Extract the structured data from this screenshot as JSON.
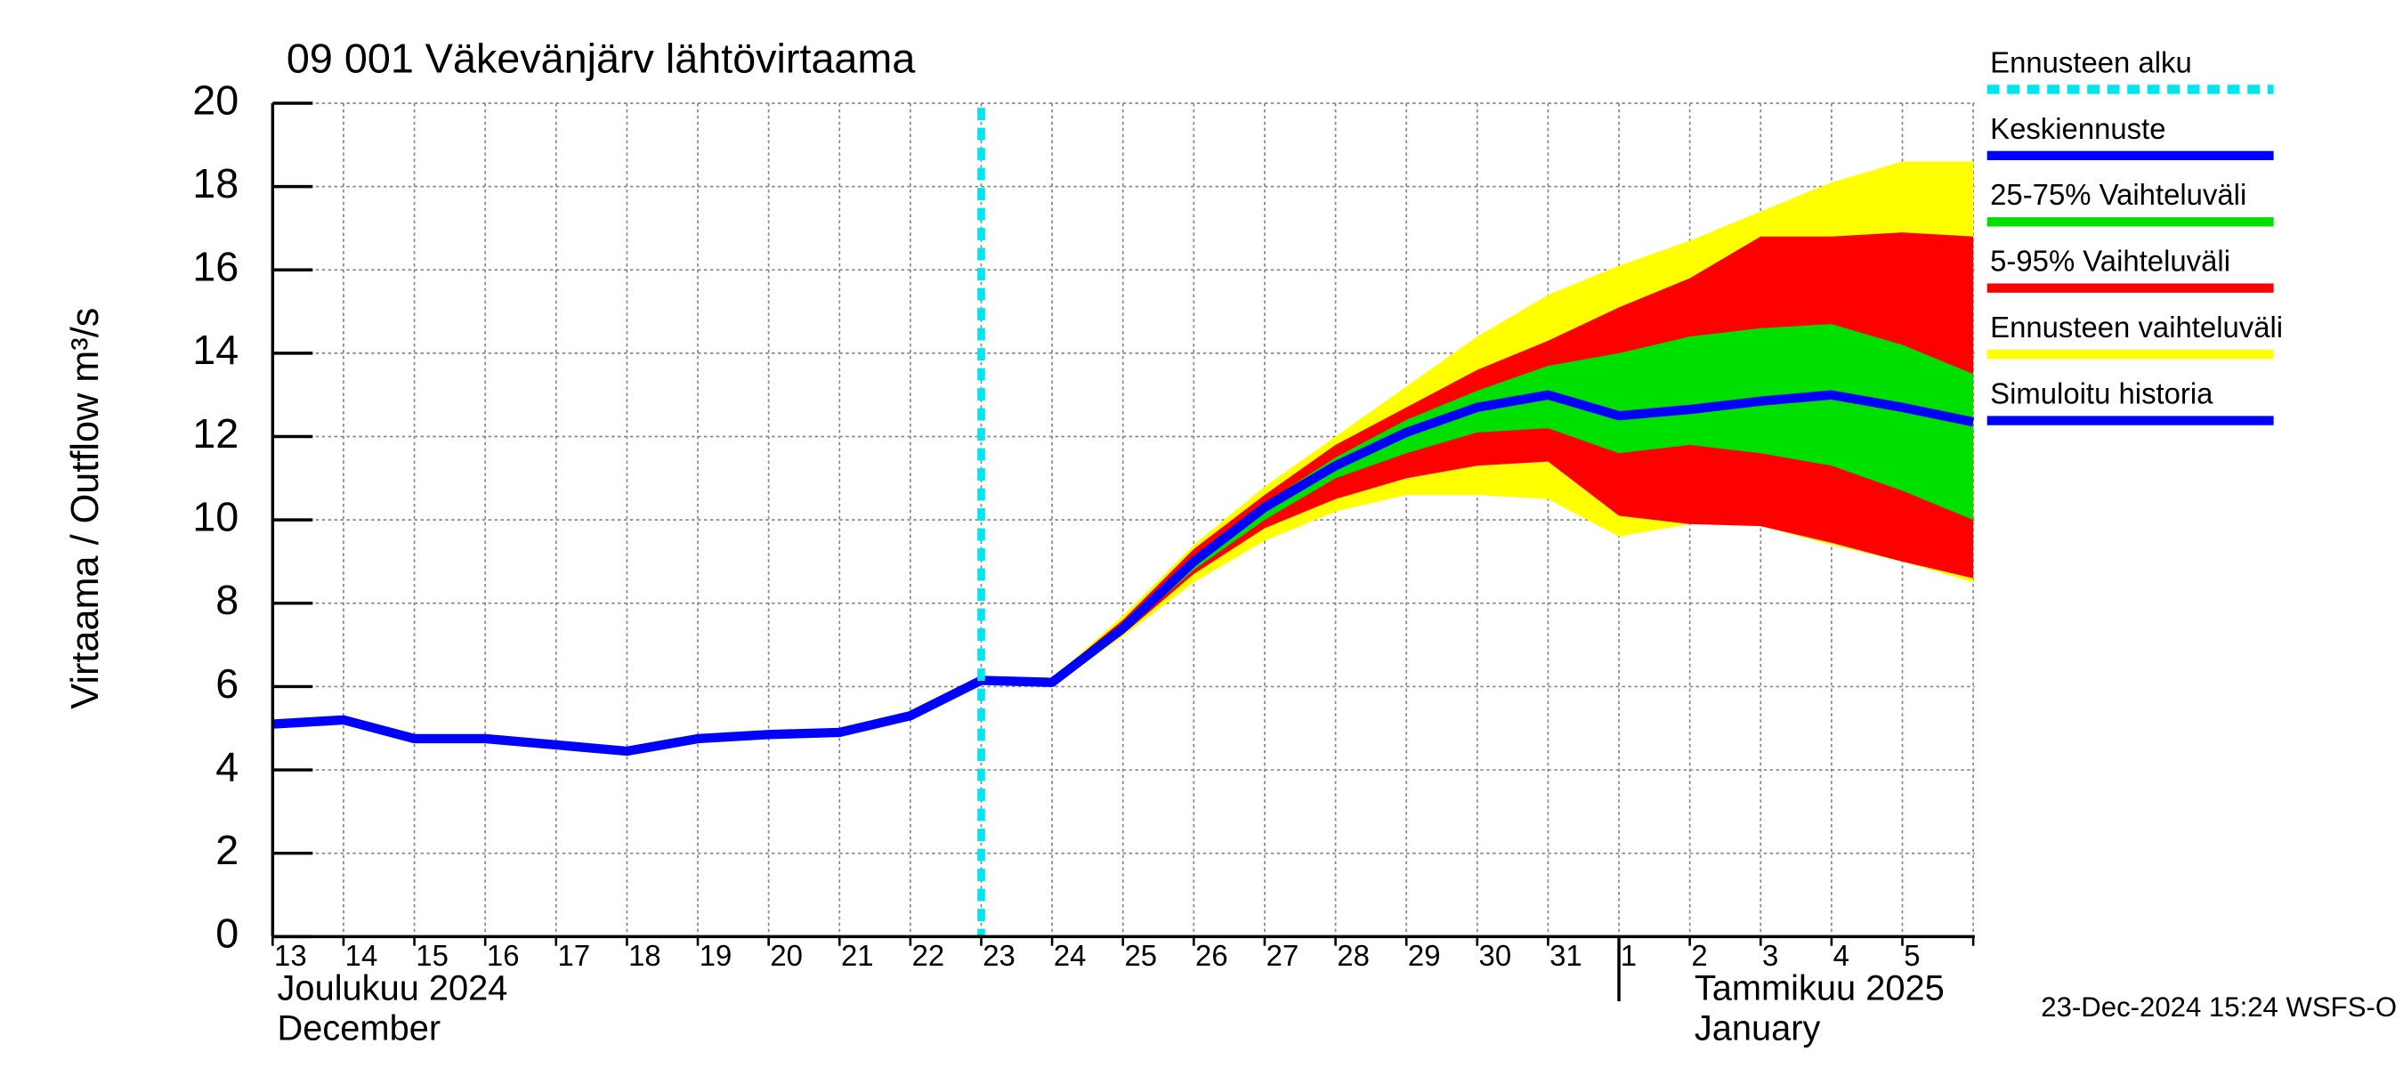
{
  "chart_data": {
    "type": "forecast",
    "title": "09 001 Väkevänjärv lähtövirtaama",
    "y_label": "Virtaama / Outflow    m³/s",
    "ylim": [
      0,
      20
    ],
    "yticks": [
      0,
      2,
      4,
      6,
      8,
      10,
      12,
      14,
      16,
      18,
      20
    ],
    "grid": true,
    "categories": [
      "13",
      "14",
      "15",
      "16",
      "17",
      "18",
      "19",
      "20",
      "21",
      "22",
      "23",
      "24",
      "25",
      "26",
      "27",
      "28",
      "29",
      "30",
      "31",
      "1",
      "2",
      "3",
      "4",
      "5",
      null
    ],
    "months": [
      {
        "at": "13",
        "lines": [
          "Joulukuu  2024",
          "December"
        ]
      },
      {
        "at": "1",
        "lines": [
          "Tammikuu  2025",
          "January"
        ]
      }
    ],
    "forecast_start": {
      "name": "Ennusteen alku",
      "color": "#00e5ee",
      "at": "23"
    },
    "series": [
      {
        "name": "Keskiennuste",
        "color": "#0000ff",
        "kind": "line",
        "values": [
          null,
          null,
          null,
          null,
          null,
          null,
          null,
          null,
          null,
          null,
          6.15,
          6.1,
          7.4,
          9.0,
          10.3,
          11.3,
          12.1,
          12.7,
          13.0,
          12.5,
          12.65,
          12.85,
          13.0,
          12.7,
          12.35
        ]
      },
      {
        "name": "25-75% Vaihteluväli",
        "color": "#00e000",
        "kind": "band",
        "upper": [
          null,
          null,
          null,
          null,
          null,
          null,
          null,
          null,
          null,
          null,
          6.15,
          6.1,
          7.5,
          9.1,
          10.4,
          11.5,
          12.4,
          13.1,
          13.7,
          14.0,
          14.4,
          14.6,
          14.7,
          14.2,
          13.5
        ],
        "lower": [
          null,
          null,
          null,
          null,
          null,
          null,
          null,
          null,
          null,
          null,
          6.15,
          6.05,
          7.3,
          8.8,
          10.0,
          11.0,
          11.6,
          12.1,
          12.2,
          11.6,
          11.8,
          11.6,
          11.3,
          10.7,
          10.0
        ]
      },
      {
        "name": "5-95% Vaihteluväli",
        "color": "#ff0000",
        "kind": "band",
        "upper": [
          null,
          null,
          null,
          null,
          null,
          null,
          null,
          null,
          null,
          null,
          6.15,
          6.2,
          7.6,
          9.3,
          10.6,
          11.8,
          12.7,
          13.6,
          14.3,
          15.1,
          15.8,
          16.8,
          16.8,
          16.9,
          16.8
        ],
        "lower": [
          null,
          null,
          null,
          null,
          null,
          null,
          null,
          null,
          null,
          null,
          6.15,
          6.05,
          7.25,
          8.7,
          9.8,
          10.5,
          11.0,
          11.3,
          11.4,
          10.1,
          9.9,
          9.85,
          9.45,
          9.0,
          8.6
        ]
      },
      {
        "name": "Ennusteen vaihteluväli",
        "color": "#ffff00",
        "kind": "band",
        "upper": [
          null,
          null,
          null,
          null,
          null,
          null,
          null,
          null,
          null,
          null,
          6.15,
          6.2,
          7.7,
          9.4,
          10.8,
          12.0,
          13.2,
          14.4,
          15.4,
          16.1,
          16.7,
          17.4,
          18.1,
          18.6,
          18.6
        ],
        "lower": [
          null,
          null,
          null,
          null,
          null,
          null,
          null,
          null,
          null,
          null,
          6.15,
          6.0,
          7.2,
          8.5,
          9.5,
          10.2,
          10.6,
          10.6,
          10.5,
          9.6,
          9.9,
          9.85,
          9.4,
          9.0,
          8.5
        ]
      },
      {
        "name": "Simuloitu historia",
        "color": "#0000ff",
        "kind": "line",
        "values": [
          5.1,
          5.2,
          4.75,
          4.75,
          4.6,
          4.45,
          4.75,
          4.85,
          4.9,
          5.3,
          6.15,
          null,
          null,
          null,
          null,
          null,
          null,
          null,
          null,
          null,
          null,
          null,
          null,
          null,
          null
        ]
      }
    ],
    "footer": "23-Dec-2024 15:24 WSFS-O"
  }
}
